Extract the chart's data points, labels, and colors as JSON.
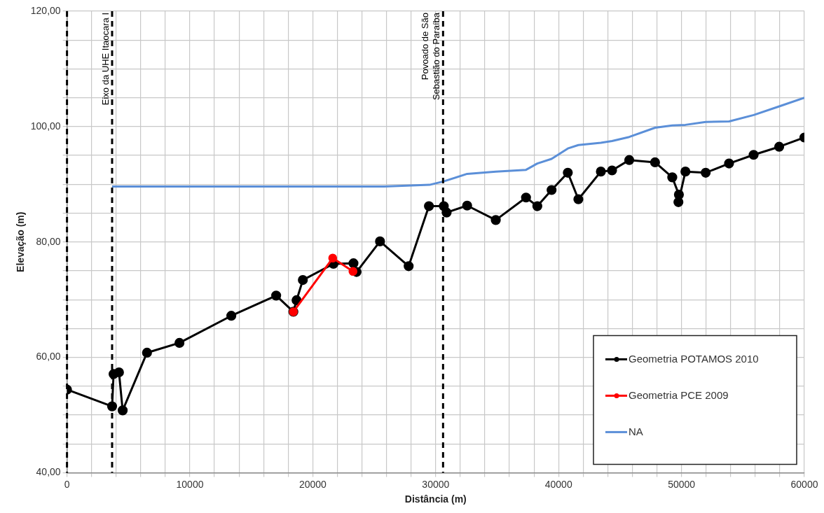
{
  "chart_data": {
    "type": "line",
    "xlabel": "Distância (m)",
    "ylabel": "Elevação (m)",
    "xlim": [
      0,
      60000
    ],
    "ylim": [
      40,
      120
    ],
    "xticks": [
      0,
      {
        "value": 2000,
        "label": null
      },
      {
        "value": 4000,
        "label": null
      },
      {
        "value": 6000,
        "label": null
      },
      {
        "value": 8000,
        "label": null
      },
      10000,
      {
        "value": 12000,
        "label": null
      },
      {
        "value": 14000,
        "label": null
      },
      {
        "value": 16000,
        "label": null
      },
      {
        "value": 18000,
        "label": null
      },
      20000,
      {
        "value": 22000,
        "label": null
      },
      {
        "value": 24000,
        "label": null
      },
      {
        "value": 26000,
        "label": null
      },
      {
        "value": 28000,
        "label": null
      },
      30000,
      {
        "value": 32000,
        "label": null
      },
      {
        "value": 34000,
        "label": null
      },
      {
        "value": 36000,
        "label": null
      },
      {
        "value": 38000,
        "label": null
      },
      40000,
      {
        "value": 42000,
        "label": null
      },
      {
        "value": 44000,
        "label": null
      },
      {
        "value": 46000,
        "label": null
      },
      {
        "value": 48000,
        "label": null
      },
      50000,
      {
        "value": 52000,
        "label": null
      },
      {
        "value": 54000,
        "label": null
      },
      {
        "value": 56000,
        "label": null
      },
      {
        "value": 58000,
        "label": null
      },
      60000
    ],
    "yticks": [
      {
        "value": 40,
        "label": "40,00"
      },
      {
        "value": 45,
        "label": null
      },
      {
        "value": 50,
        "label": null
      },
      {
        "value": 55,
        "label": null
      },
      {
        "value": 60,
        "label": "60,00"
      },
      {
        "value": 65,
        "label": null
      },
      {
        "value": 70,
        "label": null
      },
      {
        "value": 75,
        "label": null
      },
      {
        "value": 80,
        "label": "80,00"
      },
      {
        "value": 85,
        "label": null
      },
      {
        "value": 90,
        "label": null
      },
      {
        "value": 95,
        "label": null
      },
      {
        "value": 100,
        "label": "100,00"
      },
      {
        "value": 105,
        "label": null
      },
      {
        "value": 110,
        "label": null
      },
      {
        "value": 115,
        "label": null
      },
      {
        "value": 120,
        "label": "120,00"
      }
    ],
    "grid": true,
    "legend": "bottom right",
    "line_style": "solid",
    "series": [
      {
        "name": "NA",
        "color": "#5b8fd8",
        "marker": "none",
        "x": [
          3670,
          10000,
          20000,
          25800,
          29500,
          30660,
          32560,
          34890,
          37350,
          38270,
          39430,
          40750,
          41610,
          43440,
          44350,
          45750,
          47850,
          49250,
          50320,
          51970,
          53870,
          55870,
          57950,
          60000
        ],
        "values": [
          89.6,
          89.6,
          89.6,
          89.6,
          89.9,
          90.5,
          91.8,
          92.2,
          92.5,
          93.6,
          94.4,
          96.2,
          96.8,
          97.2,
          97.5,
          98.2,
          99.8,
          100.2,
          100.3,
          100.8,
          100.9,
          102.0,
          103.5,
          105.0
        ]
      },
      {
        "name": "Geometria PCE 2009",
        "color": "#ff0000",
        "marker": "circle",
        "x": [
          18420,
          21620,
          23270
        ],
        "values": [
          67.9,
          77.2,
          74.9
        ]
      },
      {
        "name": "Geometria POTAMOS 2010",
        "color": "#000000",
        "marker": "circle",
        "x": [
          0,
          3670,
          3790,
          4230,
          4530,
          6510,
          9150,
          13370,
          17020,
          18420,
          18680,
          19190,
          21680,
          23310,
          23560,
          25470,
          27800,
          29450,
          30660,
          30890,
          32560,
          34890,
          37350,
          38270,
          39430,
          40750,
          41610,
          43440,
          44350,
          45750,
          47850,
          49250,
          49790,
          49750,
          50320,
          51970,
          53870,
          55870,
          57950,
          60000
        ],
        "values": [
          54.4,
          51.5,
          57.1,
          57.4,
          50.8,
          60.8,
          62.5,
          67.2,
          70.7,
          67.9,
          69.9,
          73.4,
          76.2,
          76.3,
          74.8,
          80.1,
          75.8,
          86.2,
          86.2,
          85.1,
          86.3,
          83.8,
          87.7,
          86.2,
          89.0,
          92.0,
          87.4,
          92.2,
          92.4,
          94.2,
          93.8,
          91.2,
          88.2,
          86.9,
          92.2,
          92.0,
          93.6,
          95.1,
          96.5,
          98.1
        ]
      }
    ],
    "ref_lines": [
      {
        "axis": "x",
        "value": 0,
        "line_style": "dashed",
        "color": "#000000"
      },
      {
        "axis": "x",
        "value": 3670,
        "label": "Eixo da UHE Itaocara I",
        "line_style": "dashed",
        "color": "#000000"
      },
      {
        "axis": "x",
        "value": 30600,
        "label": "Povoado de São\nSebastião do Paraíba",
        "line_style": "dashed",
        "color": "#000000"
      }
    ]
  }
}
